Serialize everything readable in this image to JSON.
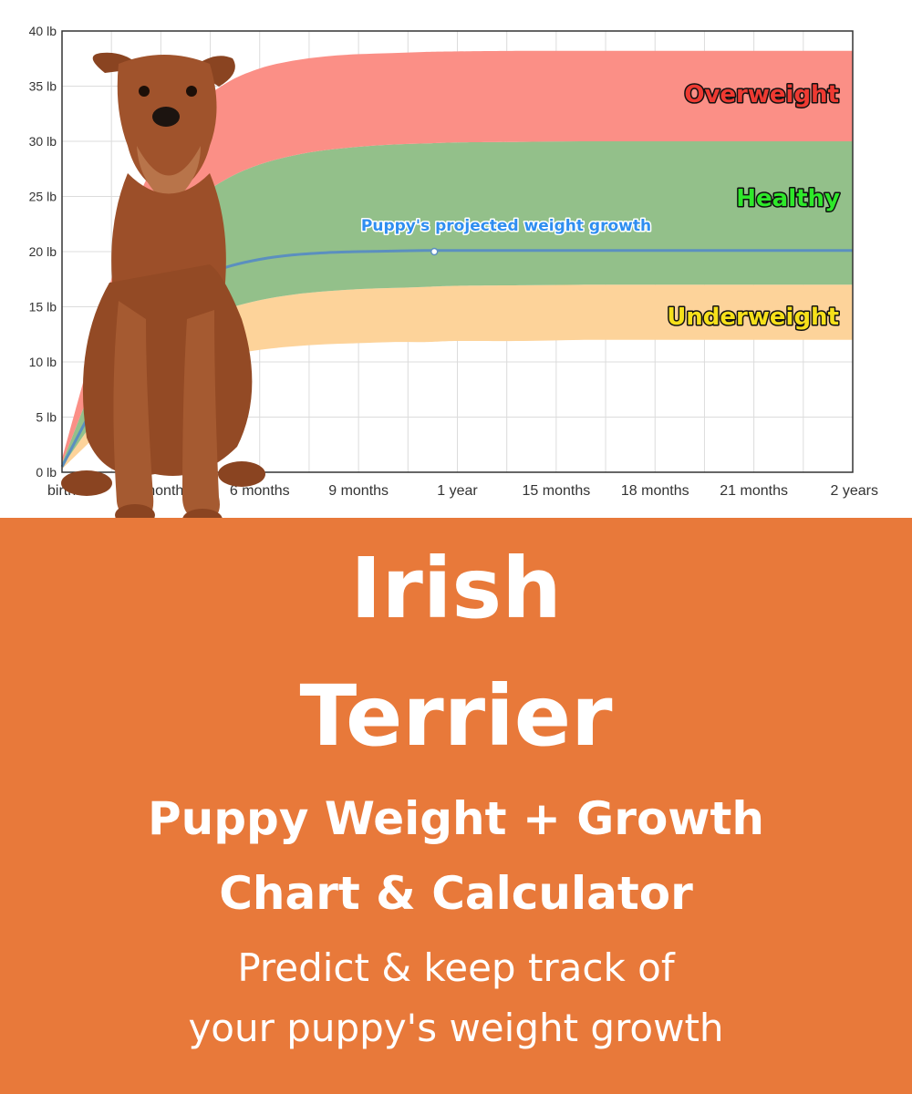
{
  "chart_data": {
    "type": "area",
    "title": "",
    "xlabel": "",
    "ylabel": "",
    "ylim": [
      0,
      40
    ],
    "xlim": [
      0,
      24
    ],
    "y_ticks": [
      {
        "value": 0,
        "label": "0 lb"
      },
      {
        "value": 5,
        "label": "5 lb"
      },
      {
        "value": 10,
        "label": "10 lb"
      },
      {
        "value": 15,
        "label": "15 lb"
      },
      {
        "value": 20,
        "label": "20 lb"
      },
      {
        "value": 25,
        "label": "25 lb"
      },
      {
        "value": 30,
        "label": "30 lb"
      },
      {
        "value": 35,
        "label": "35 lb"
      },
      {
        "value": 40,
        "label": "40 lb"
      }
    ],
    "x_ticks": [
      {
        "value": 0,
        "label": "birth"
      },
      {
        "value": 3,
        "label": "3 months"
      },
      {
        "value": 6,
        "label": "6 months"
      },
      {
        "value": 9,
        "label": "9 months"
      },
      {
        "value": 12,
        "label": "1 year"
      },
      {
        "value": 15,
        "label": "15 months"
      },
      {
        "value": 18,
        "label": "18 months"
      },
      {
        "value": 21,
        "label": "21 months"
      },
      {
        "value": 24,
        "label": "2 years"
      }
    ],
    "grid": true,
    "x": [
      0,
      1,
      2,
      3,
      4,
      5,
      6,
      7,
      8,
      9,
      10,
      11,
      12,
      14,
      16,
      18,
      20,
      22,
      24
    ],
    "bands": [
      {
        "name": "Underweight",
        "color": "#fdd39a",
        "label_color": "#f6e01a",
        "lower": [
          0.3,
          3.2,
          6.1,
          8.3,
          9.8,
          10.6,
          11.1,
          11.4,
          11.6,
          11.7,
          11.8,
          11.8,
          11.9,
          11.9,
          12.0,
          12.0,
          12.0,
          12.0,
          12.0
        ],
        "upper": [
          0.5,
          4.8,
          9.0,
          11.8,
          13.6,
          14.8,
          15.6,
          16.1,
          16.4,
          16.6,
          16.7,
          16.8,
          16.9,
          16.95,
          17.0,
          17.0,
          17.0,
          17.0,
          17.0
        ]
      },
      {
        "name": "Healthy",
        "color": "#93c08a",
        "label_color": "#2ee82a",
        "lower": [
          0.5,
          4.8,
          9.0,
          11.8,
          13.6,
          14.8,
          15.6,
          16.1,
          16.4,
          16.6,
          16.7,
          16.8,
          16.9,
          16.95,
          17.0,
          17.0,
          17.0,
          17.0,
          17.0
        ],
        "upper": [
          0.8,
          8.5,
          16.0,
          21.0,
          24.5,
          26.6,
          27.9,
          28.7,
          29.2,
          29.5,
          29.7,
          29.8,
          29.9,
          29.95,
          30.0,
          30.0,
          30.0,
          30.0,
          30.0
        ]
      },
      {
        "name": "Overweight",
        "color": "#fb8f86",
        "label_color": "#ee3a32",
        "lower": [
          0.8,
          8.5,
          16.0,
          21.0,
          24.5,
          26.6,
          27.9,
          28.7,
          29.2,
          29.5,
          29.7,
          29.8,
          29.9,
          29.95,
          30.0,
          30.0,
          30.0,
          30.0,
          30.0
        ],
        "upper": [
          1.2,
          12.0,
          22.5,
          29.0,
          33.0,
          35.3,
          36.6,
          37.3,
          37.7,
          37.9,
          38.0,
          38.1,
          38.15,
          38.2,
          38.2,
          38.2,
          38.2,
          38.2,
          38.2
        ]
      }
    ],
    "series": [
      {
        "name": "Puppy's projected weight growth",
        "color": "#5b8fbf",
        "label_color": "#2f8ef0",
        "values": [
          0.5,
          6.2,
          11.6,
          15.2,
          17.4,
          18.6,
          19.3,
          19.7,
          19.9,
          20.0,
          20.05,
          20.1,
          20.1,
          20.1,
          20.1,
          20.1,
          20.1,
          20.1,
          20.1
        ],
        "marker": {
          "x": 11.3,
          "y": 20.0
        }
      }
    ]
  },
  "banner": {
    "breed_line1": "Irish",
    "breed_line2": "Terrier",
    "subtitle_line1": "Puppy Weight + Growth",
    "subtitle_line2": "Chart & Calculator",
    "tagline_line1": "Predict & keep track of",
    "tagline_line2": "your puppy's weight growth"
  },
  "colors": {
    "banner_background": "#e8793a",
    "banner_text": "#ffffff",
    "dog_coat": "#a0532c"
  }
}
